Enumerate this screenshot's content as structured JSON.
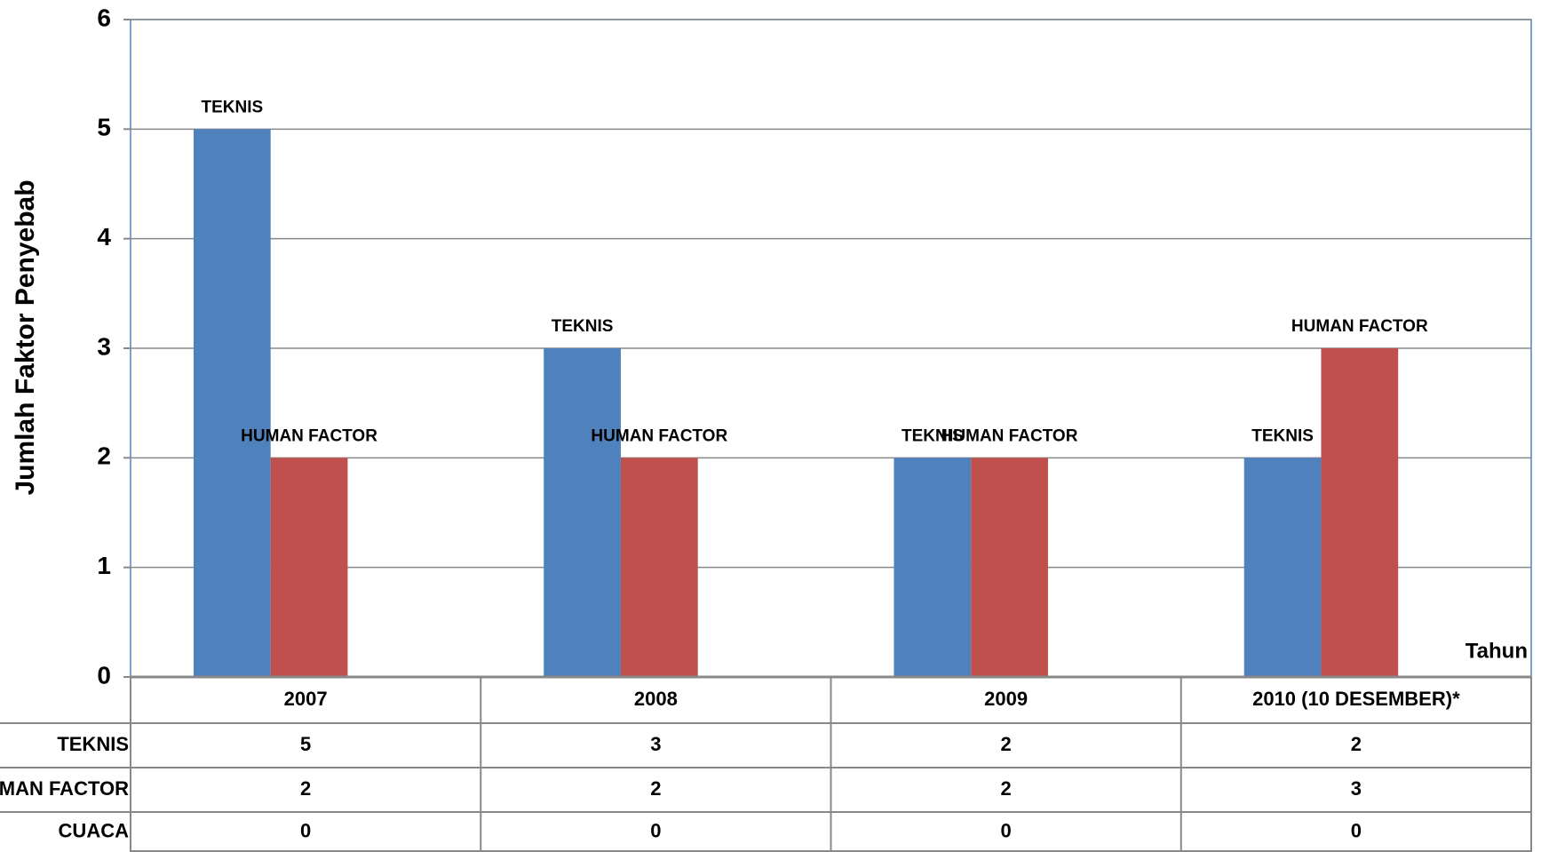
{
  "chart_data": {
    "type": "bar",
    "y_label": "Jumlah Faktor Penyebab",
    "x_label": "Tahun",
    "categories": [
      "2007",
      "2008",
      "2009",
      "2010 (10 DESEMBER)*"
    ],
    "series": [
      {
        "name": "TEKNIS",
        "color": "#4f81bd",
        "values": [
          5,
          3,
          2,
          2
        ]
      },
      {
        "name": "HUMAN FACTOR",
        "color": "#c0504d",
        "values": [
          2,
          2,
          2,
          3
        ]
      },
      {
        "name": "CUACA",
        "color": "#9bbb59",
        "values": [
          0,
          0,
          0,
          0
        ]
      }
    ],
    "ylim": [
      0,
      6
    ],
    "yticks": [
      0,
      1,
      2,
      3,
      4,
      5,
      6
    ],
    "grid": true,
    "data_table": true
  }
}
